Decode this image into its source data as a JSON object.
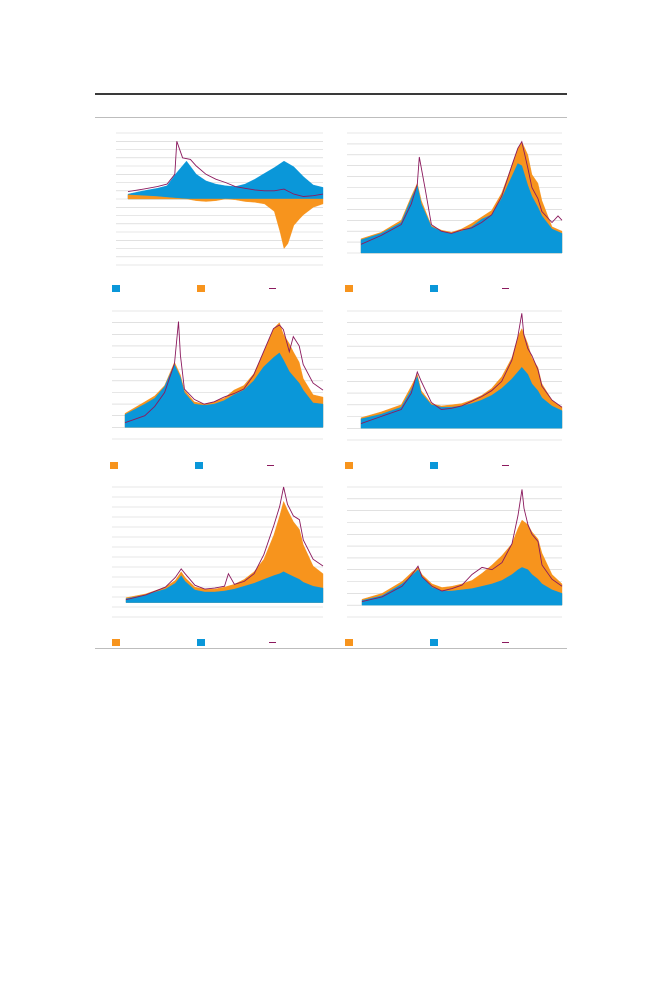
{
  "page": {
    "colors": {
      "rule": "#3a3a3a",
      "grid": "#cfcfcf",
      "blue": "#0a97d9",
      "orange": "#f7941d",
      "purple": "#8b1a5e"
    }
  },
  "chart_data": [
    {
      "type": "area",
      "panel": "top-left",
      "x_range": [
        0,
        100
      ],
      "ylim": [
        -8,
        8
      ],
      "gridlines": 16,
      "grid": true,
      "series": [
        {
          "color": "#0a97d9",
          "x": [
            0,
            8,
            15,
            20,
            25,
            30,
            35,
            40,
            45,
            50,
            55,
            60,
            65,
            70,
            75,
            80,
            85,
            90,
            95,
            100
          ],
          "y": [
            0.6,
            1.0,
            1.3,
            1.6,
            3.2,
            4.6,
            3.0,
            2.2,
            1.8,
            1.6,
            1.5,
            1.8,
            2.4,
            3.1,
            3.8,
            4.6,
            3.9,
            2.7,
            1.7,
            1.4
          ]
        },
        {
          "color": "#f7941d",
          "x": [
            0,
            8,
            15,
            20,
            25,
            30,
            35,
            40,
            45,
            50,
            55,
            60,
            65,
            70,
            75,
            78,
            80,
            82,
            85,
            88,
            90,
            95,
            100
          ],
          "y": [
            0.5,
            0.4,
            0.3,
            0.2,
            0.1,
            0,
            -0.2,
            -0.3,
            -0.2,
            0,
            -0.1,
            -0.3,
            -0.4,
            -0.6,
            -1.5,
            -4.0,
            -6.0,
            -5.4,
            -3.2,
            -2.4,
            -1.9,
            -1.0,
            -0.6
          ]
        },
        {
          "color": "#8b1a5e",
          "x": [
            0,
            8,
            15,
            20,
            24,
            25,
            28,
            32,
            35,
            40,
            45,
            50,
            55,
            60,
            65,
            70,
            75,
            80,
            85,
            90,
            95,
            100
          ],
          "y": [
            0.9,
            1.2,
            1.5,
            1.8,
            3.0,
            7.0,
            5.0,
            4.8,
            4.0,
            3.0,
            2.4,
            2.0,
            1.5,
            1.3,
            1.1,
            1.0,
            1.0,
            1.2,
            0.6,
            0.3,
            0.4,
            0.6
          ]
        }
      ]
    },
    {
      "type": "area",
      "panel": "top-right",
      "x_range": [
        0,
        100
      ],
      "ylim": [
        0,
        11
      ],
      "gridlines": 11,
      "grid": true,
      "series": [
        {
          "color": "#f7941d",
          "x": [
            0,
            10,
            20,
            25,
            28,
            30,
            35,
            40,
            45,
            50,
            55,
            60,
            65,
            70,
            75,
            78,
            80,
            83,
            85,
            88,
            90,
            95,
            100
          ],
          "y": [
            1.3,
            1.9,
            3.0,
            5.2,
            6.4,
            4.8,
            2.5,
            2.1,
            1.9,
            2.2,
            2.7,
            3.3,
            3.9,
            5.5,
            8.0,
            9.6,
            10.2,
            9.0,
            7.2,
            6.4,
            4.8,
            2.4,
            2.0
          ]
        },
        {
          "color": "#0a97d9",
          "x": [
            0,
            10,
            20,
            25,
            28,
            30,
            35,
            40,
            45,
            50,
            55,
            60,
            65,
            70,
            75,
            78,
            80,
            83,
            85,
            88,
            90,
            95,
            100
          ],
          "y": [
            1.2,
            1.8,
            2.8,
            5.0,
            6.2,
            4.5,
            2.4,
            2.0,
            1.8,
            2.0,
            2.4,
            3.1,
            3.5,
            5.0,
            7.0,
            8.2,
            8.0,
            6.2,
            5.2,
            4.2,
            3.4,
            2.2,
            1.8
          ]
        },
        {
          "color": "#8b1a5e",
          "x": [
            0,
            10,
            20,
            25,
            28,
            29,
            32,
            35,
            40,
            45,
            50,
            55,
            60,
            65,
            70,
            75,
            78,
            80,
            83,
            85,
            88,
            90,
            95,
            98,
            100
          ],
          "y": [
            0.8,
            1.6,
            2.6,
            4.5,
            6.3,
            8.8,
            5.8,
            2.6,
            2.0,
            1.8,
            2.1,
            2.3,
            2.8,
            3.5,
            5.2,
            8.0,
            9.6,
            10.2,
            7.8,
            6.0,
            5.0,
            3.8,
            2.8,
            3.4,
            3.0
          ]
        }
      ]
    },
    {
      "type": "area",
      "panel": "middle-left",
      "x_range": [
        0,
        100
      ],
      "ylim": [
        -1,
        10
      ],
      "gridlines": 11,
      "grid": true,
      "series": [
        {
          "color": "#f7941d",
          "x": [
            0,
            10,
            15,
            20,
            25,
            28,
            30,
            35,
            40,
            45,
            50,
            55,
            60,
            65,
            70,
            75,
            78,
            80,
            83,
            85,
            88,
            90,
            95,
            100
          ],
          "y": [
            1.2,
            2.2,
            2.7,
            3.6,
            5.6,
            4.5,
            3.2,
            2.2,
            2.0,
            2.2,
            2.5,
            3.2,
            3.6,
            4.6,
            6.5,
            8.5,
            9.0,
            8.0,
            7.2,
            6.5,
            5.6,
            4.2,
            2.8,
            2.6
          ]
        },
        {
          "color": "#0a97d9",
          "x": [
            0,
            10,
            15,
            20,
            25,
            28,
            30,
            35,
            40,
            45,
            50,
            55,
            60,
            65,
            70,
            75,
            78,
            80,
            83,
            85,
            88,
            90,
            95,
            100
          ],
          "y": [
            1.1,
            2.0,
            2.5,
            3.5,
            5.4,
            4.3,
            3.0,
            2.0,
            1.9,
            2.0,
            2.3,
            2.8,
            3.2,
            4.0,
            5.2,
            6.0,
            6.4,
            5.8,
            4.8,
            4.4,
            3.8,
            3.2,
            2.1,
            2.0
          ]
        },
        {
          "color": "#8b1a5e",
          "x": [
            0,
            10,
            15,
            20,
            25,
            27,
            28,
            30,
            35,
            40,
            45,
            50,
            55,
            60,
            65,
            70,
            75,
            78,
            80,
            83,
            85,
            88,
            90,
            95,
            100
          ],
          "y": [
            0.4,
            1.0,
            1.8,
            3.0,
            5.5,
            9.1,
            6.2,
            3.3,
            2.4,
            2.0,
            2.2,
            2.6,
            2.9,
            3.3,
            4.5,
            6.5,
            8.5,
            8.8,
            8.4,
            6.5,
            7.8,
            7.0,
            5.4,
            3.8,
            3.2
          ]
        }
      ]
    },
    {
      "type": "area",
      "panel": "middle-right",
      "x_range": [
        0,
        100
      ],
      "ylim": [
        -1,
        10
      ],
      "gridlines": 11,
      "grid": true,
      "series": [
        {
          "color": "#f7941d",
          "x": [
            0,
            10,
            20,
            25,
            28,
            30,
            35,
            40,
            45,
            50,
            55,
            60,
            65,
            70,
            75,
            78,
            80,
            83,
            85,
            88,
            90,
            95,
            100
          ],
          "y": [
            0.9,
            1.4,
            2.0,
            3.6,
            4.6,
            3.2,
            2.1,
            1.9,
            2.0,
            2.1,
            2.4,
            2.8,
            3.4,
            4.4,
            6.0,
            7.8,
            8.5,
            7.2,
            6.0,
            5.2,
            3.8,
            2.4,
            1.8
          ]
        },
        {
          "color": "#0a97d9",
          "x": [
            0,
            10,
            20,
            25,
            28,
            30,
            35,
            40,
            45,
            50,
            55,
            60,
            65,
            70,
            75,
            78,
            80,
            83,
            85,
            88,
            90,
            95,
            100
          ],
          "y": [
            0.8,
            1.2,
            1.8,
            3.3,
            4.4,
            3.0,
            2.0,
            1.8,
            1.8,
            1.9,
            2.1,
            2.4,
            2.8,
            3.4,
            4.2,
            4.8,
            5.2,
            4.6,
            3.8,
            3.2,
            2.6,
            1.9,
            1.5
          ]
        },
        {
          "color": "#8b1a5e",
          "x": [
            0,
            10,
            20,
            25,
            28,
            30,
            35,
            40,
            45,
            50,
            55,
            60,
            65,
            70,
            75,
            78,
            80,
            81,
            83,
            85,
            88,
            90,
            95,
            100
          ],
          "y": [
            0.4,
            1.0,
            1.6,
            3.0,
            4.8,
            4.0,
            2.2,
            1.6,
            1.7,
            1.9,
            2.3,
            2.7,
            3.2,
            4.0,
            5.8,
            7.8,
            9.8,
            8.0,
            6.8,
            6.2,
            5.0,
            3.6,
            2.4,
            1.8
          ]
        }
      ]
    },
    {
      "type": "area",
      "panel": "bottom-left",
      "x_range": [
        0,
        100
      ],
      "ylim": [
        -1.5,
        12
      ],
      "gridlines": 13,
      "grid": true,
      "series": [
        {
          "color": "#f7941d",
          "x": [
            0,
            10,
            20,
            25,
            28,
            30,
            35,
            40,
            45,
            50,
            55,
            60,
            65,
            70,
            75,
            78,
            80,
            82,
            85,
            88,
            90,
            95,
            100
          ],
          "y": [
            0.5,
            0.9,
            1.6,
            2.3,
            3.2,
            2.6,
            1.6,
            1.4,
            1.4,
            1.6,
            1.9,
            2.4,
            3.2,
            4.5,
            7.0,
            9.0,
            10.5,
            9.6,
            8.4,
            7.6,
            6.0,
            3.8,
            3.0
          ]
        },
        {
          "color": "#0a97d9",
          "x": [
            0,
            10,
            20,
            25,
            28,
            30,
            35,
            40,
            45,
            50,
            55,
            60,
            65,
            70,
            75,
            78,
            80,
            82,
            85,
            88,
            90,
            95,
            100
          ],
          "y": [
            0.4,
            0.8,
            1.4,
            2.0,
            2.8,
            2.2,
            1.3,
            1.1,
            1.1,
            1.2,
            1.4,
            1.7,
            2.0,
            2.4,
            2.8,
            3.0,
            3.2,
            3.0,
            2.7,
            2.4,
            2.1,
            1.7,
            1.5
          ]
        },
        {
          "color": "#8b1a5e",
          "x": [
            0,
            10,
            20,
            25,
            28,
            30,
            35,
            40,
            45,
            50,
            52,
            55,
            60,
            65,
            70,
            75,
            78,
            80,
            82,
            85,
            88,
            90,
            95,
            100
          ],
          "y": [
            0.3,
            0.8,
            1.6,
            2.6,
            3.5,
            3.0,
            1.8,
            1.4,
            1.5,
            1.7,
            3.0,
            1.9,
            2.2,
            3.0,
            5.0,
            8.0,
            10.0,
            12.0,
            10.2,
            9.0,
            8.6,
            6.5,
            4.5,
            3.8
          ]
        }
      ]
    },
    {
      "type": "area",
      "panel": "bottom-right",
      "x_range": [
        0,
        100
      ],
      "ylim": [
        -1,
        10
      ],
      "gridlines": 11,
      "grid": true,
      "series": [
        {
          "color": "#f7941d",
          "x": [
            0,
            10,
            20,
            25,
            28,
            30,
            35,
            40,
            45,
            50,
            55,
            60,
            65,
            70,
            75,
            78,
            80,
            83,
            85,
            88,
            90,
            95,
            100
          ],
          "y": [
            0.5,
            1.0,
            2.0,
            2.8,
            3.2,
            2.6,
            1.8,
            1.5,
            1.6,
            1.8,
            2.1,
            2.7,
            3.4,
            4.2,
            5.2,
            6.5,
            7.2,
            6.8,
            6.2,
            5.6,
            4.4,
            2.6,
            1.8
          ]
        },
        {
          "color": "#0a97d9",
          "x": [
            0,
            10,
            20,
            25,
            28,
            30,
            35,
            40,
            45,
            50,
            55,
            60,
            65,
            70,
            75,
            78,
            80,
            83,
            85,
            88,
            90,
            95,
            100
          ],
          "y": [
            0.4,
            0.8,
            1.8,
            2.5,
            3.0,
            2.4,
            1.5,
            1.2,
            1.2,
            1.3,
            1.4,
            1.6,
            1.8,
            2.1,
            2.6,
            3.0,
            3.2,
            3.0,
            2.6,
            2.2,
            1.8,
            1.3,
            1.0
          ]
        },
        {
          "color": "#8b1a5e",
          "x": [
            0,
            10,
            20,
            25,
            28,
            30,
            35,
            40,
            45,
            50,
            55,
            60,
            65,
            70,
            75,
            78,
            80,
            81,
            83,
            85,
            88,
            90,
            95,
            100
          ],
          "y": [
            0.3,
            0.7,
            1.6,
            2.6,
            3.3,
            2.4,
            1.6,
            1.2,
            1.4,
            1.7,
            2.6,
            3.2,
            3.0,
            3.6,
            5.2,
            7.6,
            9.8,
            8.2,
            6.8,
            6.0,
            5.4,
            3.4,
            2.2,
            1.6
          ]
        }
      ]
    }
  ]
}
